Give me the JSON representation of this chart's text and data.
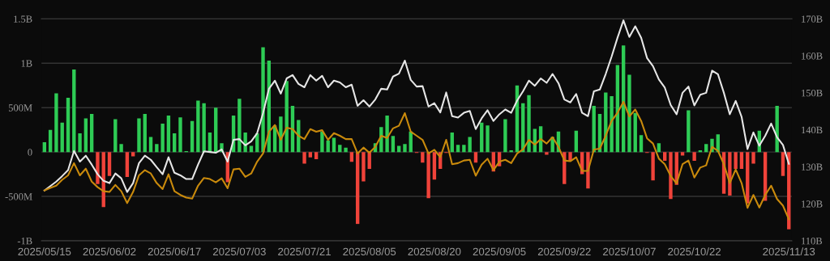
{
  "chart_data": {
    "type": "bar",
    "categories": [
      "2025/05/15",
      null,
      null,
      null,
      null,
      null,
      null,
      null,
      null,
      null,
      null,
      "2025/06/02",
      null,
      null,
      null,
      null,
      null,
      null,
      null,
      null,
      null,
      null,
      "2025/06/17",
      null,
      null,
      null,
      null,
      null,
      null,
      null,
      null,
      null,
      null,
      "2025/07/03",
      null,
      null,
      null,
      null,
      null,
      null,
      null,
      null,
      null,
      null,
      "2025/07/21",
      null,
      null,
      null,
      null,
      null,
      null,
      null,
      null,
      null,
      null,
      "2025/08/05",
      null,
      null,
      null,
      null,
      null,
      null,
      null,
      null,
      null,
      null,
      "2025/08/20",
      null,
      null,
      null,
      null,
      null,
      null,
      null,
      null,
      null,
      null,
      "2025/09/05",
      null,
      null,
      null,
      null,
      null,
      null,
      null,
      null,
      null,
      null,
      "2025/09/22",
      null,
      null,
      null,
      null,
      null,
      null,
      null,
      null,
      null,
      null,
      "2025/10/07",
      null,
      null,
      null,
      null,
      null,
      null,
      null,
      null,
      null,
      null,
      "2025/10/22",
      null,
      null,
      null,
      null,
      null,
      null,
      null,
      null,
      null,
      null,
      null,
      null,
      null,
      null,
      null,
      "2025/11/13"
    ],
    "series": [
      {
        "values": [
          110000000,
          250000000,
          660000000,
          330000000,
          610000000,
          930000000,
          210000000,
          380000000,
          430000000,
          -360000000,
          -620000000,
          -270000000,
          370000000,
          90000000,
          -280000000,
          -50000000,
          380000000,
          430000000,
          170000000,
          90000000,
          320000000,
          410000000,
          210000000,
          390000000,
          10000000,
          350000000,
          580000000,
          550000000,
          220000000,
          500000000,
          100000000,
          -340000000,
          410000000,
          600000000,
          220000000,
          70000000,
          210000000,
          1180000000,
          1030000000,
          300000000,
          400000000,
          800000000,
          520000000,
          360000000,
          -130000000,
          -60000000,
          -80000000,
          230000000,
          130000000,
          160000000,
          80000000,
          50000000,
          -110000000,
          -810000000,
          -330000000,
          -190000000,
          100000000,
          280000000,
          410000000,
          180000000,
          70000000,
          90000000,
          230000000,
          -10000000,
          -120000000,
          -520000000,
          -310000000,
          -190000000,
          -10000000,
          220000000,
          80000000,
          80000000,
          170000000,
          -120000000,
          330000000,
          300000000,
          -220000000,
          -160000000,
          370000000,
          20000000,
          750000000,
          550000000,
          640000000,
          260000000,
          290000000,
          -30000000,
          170000000,
          230000000,
          -360000000,
          -100000000,
          240000000,
          -250000000,
          -410000000,
          520000000,
          430000000,
          670000000,
          630000000,
          980000000,
          1200000000,
          870000000,
          440000000,
          190000000,
          -10000000,
          -320000000,
          100000000,
          -100000000,
          -530000000,
          -370000000,
          -40000000,
          470000000,
          -100000000,
          20000000,
          90000000,
          150000000,
          200000000,
          -470000000,
          -490000000,
          -190000000,
          -190000000,
          -580000000,
          -130000000,
          240000000,
          -550000000,
          0,
          520000000,
          -270000000,
          -870000000
        ],
        "colors": [
          "#2ecc55",
          "#2ecc55",
          "#2ecc55",
          "#2ecc55",
          "#2ecc55",
          "#2ecc55",
          "#2ecc55",
          "#2ecc55",
          "#2ecc55",
          "#f0433a",
          "#f0433a",
          "#f0433a",
          "#2ecc55",
          "#2ecc55",
          "#f0433a",
          "#f0433a",
          "#2ecc55",
          "#2ecc55",
          "#2ecc55",
          "#2ecc55",
          "#2ecc55",
          "#2ecc55",
          "#2ecc55",
          "#2ecc55",
          "#2ecc55",
          "#2ecc55",
          "#2ecc55",
          "#2ecc55",
          "#2ecc55",
          "#2ecc55",
          "#2ecc55",
          "#f0433a",
          "#2ecc55",
          "#2ecc55",
          "#2ecc55",
          "#2ecc55",
          "#2ecc55",
          "#2ecc55",
          "#2ecc55",
          "#2ecc55",
          "#2ecc55",
          "#2ecc55",
          "#2ecc55",
          "#2ecc55",
          "#f0433a",
          "#f0433a",
          "#f0433a",
          "#2ecc55",
          "#2ecc55",
          "#2ecc55",
          "#2ecc55",
          "#2ecc55",
          "#f0433a",
          "#f0433a",
          "#f0433a",
          "#f0433a",
          "#2ecc55",
          "#2ecc55",
          "#2ecc55",
          "#2ecc55",
          "#2ecc55",
          "#2ecc55",
          "#2ecc55",
          "#f0433a",
          "#f0433a",
          "#f0433a",
          "#f0433a",
          "#f0433a",
          "#f0433a",
          "#2ecc55",
          "#2ecc55",
          "#2ecc55",
          "#2ecc55",
          "#f0433a",
          "#2ecc55",
          "#2ecc55",
          "#f0433a",
          "#f0433a",
          "#2ecc55",
          "#2ecc55",
          "#2ecc55",
          "#2ecc55",
          "#2ecc55",
          "#2ecc55",
          "#2ecc55",
          "#f0433a",
          "#2ecc55",
          "#2ecc55",
          "#f0433a",
          "#f0433a",
          "#2ecc55",
          "#f0433a",
          "#f0433a",
          "#2ecc55",
          "#2ecc55",
          "#2ecc55",
          "#2ecc55",
          "#2ecc55",
          "#2ecc55",
          "#2ecc55",
          "#2ecc55",
          "#2ecc55",
          "#f0433a",
          "#f0433a",
          "#2ecc55",
          "#f0433a",
          "#f0433a",
          "#f0433a",
          "#f0433a",
          "#2ecc55",
          "#f0433a",
          "#2ecc55",
          "#2ecc55",
          "#2ecc55",
          "#2ecc55",
          "#f0433a",
          "#f0433a",
          "#f0433a",
          "#f0433a",
          "#f0433a",
          "#f0433a",
          "#2ecc55",
          "#f0433a",
          "#2ecc55",
          "#2ecc55",
          "#f0433a",
          "#f0433a"
        ]
      },
      {
        "type": "line",
        "axis": "y2",
        "color": "#e6e6e6",
        "values": [
          123.6,
          124.8,
          126.0,
          127.5,
          129.1,
          134.3,
          131.4,
          133.0,
          130.6,
          128.0,
          126.2,
          125.6,
          128.2,
          126.9,
          123.2,
          125.6,
          131.0,
          133.0,
          131.9,
          129.9,
          128.0,
          132.6,
          128.4,
          127.7,
          126.7,
          126.7,
          130.6,
          134.2,
          134.0,
          133.8,
          134.7,
          131.4,
          137.3,
          137.5,
          135.8,
          136.9,
          139.1,
          144.5,
          151.1,
          153.3,
          149.8,
          153.9,
          154.8,
          152.4,
          151.5,
          154.8,
          153.3,
          154.6,
          151.5,
          153.3,
          152.8,
          151.5,
          152.2,
          146.5,
          148.0,
          146.3,
          148.2,
          151.1,
          150.9,
          154.4,
          155.2,
          158.7,
          153.5,
          151.7,
          151.8,
          146.3,
          147.2,
          144.7,
          150.1,
          143.7,
          143.3,
          144.6,
          145.1,
          140.2,
          143.1,
          145.3,
          142.4,
          144.2,
          145.5,
          144.6,
          147.9,
          150.4,
          153.3,
          151.9,
          153.9,
          152.7,
          155.1,
          152.6,
          148.2,
          147.4,
          149.7,
          144.6,
          143.7,
          150.4,
          150.9,
          155.1,
          159.8,
          164.9,
          169.6,
          165.1,
          168.0,
          164.9,
          159.4,
          157.2,
          153.6,
          151.4,
          146.7,
          144.2,
          150.0,
          151.7,
          146.6,
          149.5,
          150.0,
          156.0,
          155.0,
          150.0,
          144.2,
          147.8,
          143.5,
          134.8,
          139.3,
          135.7,
          138.4,
          141.7,
          138.0,
          135.9,
          130.8
        ]
      },
      {
        "type": "line",
        "axis": "y2",
        "color": "#c98a0c",
        "values": [
          123.6,
          124.3,
          124.9,
          126.5,
          127.7,
          131.0,
          127.7,
          129.5,
          126.0,
          124.5,
          123.4,
          123.2,
          125.1,
          123.4,
          120.2,
          123.2,
          127.7,
          129.1,
          128.2,
          125.6,
          124.0,
          128.0,
          123.4,
          122.4,
          121.7,
          121.4,
          124.9,
          127.0,
          126.7,
          125.8,
          126.9,
          124.2,
          129.3,
          129.5,
          127.3,
          128.2,
          131.4,
          133.6,
          139.5,
          141.3,
          137.3,
          140.6,
          140.2,
          138.4,
          137.5,
          140.2,
          139.5,
          139.9,
          137.3,
          139.1,
          138.4,
          137.5,
          137.5,
          133.6,
          135.2,
          133.8,
          135.4,
          138.4,
          137.8,
          140.4,
          141.1,
          144.5,
          139.5,
          138.4,
          137.3,
          133.6,
          134.6,
          132.6,
          137.3,
          130.7,
          131.0,
          131.7,
          131.9,
          127.6,
          130.6,
          132.2,
          129.1,
          131.4,
          131.9,
          131.0,
          133.6,
          134.7,
          137.3,
          136.0,
          137.5,
          136.3,
          138.0,
          135.4,
          131.7,
          131.5,
          132.6,
          128.9,
          128.9,
          134.7,
          134.9,
          138.4,
          142.4,
          144.6,
          147.6,
          143.6,
          145.5,
          142.4,
          137.7,
          136.3,
          132.2,
          130.7,
          127.5,
          125.5,
          130.7,
          131.7,
          127.1,
          129.8,
          130.4,
          135.4,
          134.3,
          130.7,
          125.6,
          129.3,
          125.6,
          118.9,
          122.4,
          119.0,
          122.4,
          124.9,
          121.3,
          119.5,
          115.8
        ]
      }
    ],
    "ylim": [
      -1000000000,
      1500000000
    ],
    "yticks": [
      {
        "value": -1000000000,
        "label": "-1B"
      },
      {
        "value": -500000000,
        "label": "-500M"
      },
      0,
      {
        "value": 500000000,
        "label": "500M"
      },
      {
        "value": 1000000000,
        "label": "1B"
      },
      {
        "value": 1500000000,
        "label": "1.5B"
      }
    ],
    "y2lim": [
      110,
      170
    ],
    "y2ticks": [
      {
        "value": 110,
        "label": "110B"
      },
      {
        "value": 120,
        "label": "120B"
      },
      {
        "value": 130,
        "label": "130B"
      },
      {
        "value": 140,
        "label": "140B"
      },
      {
        "value": 150,
        "label": "150B"
      },
      {
        "value": 160,
        "label": "160B"
      },
      {
        "value": 170,
        "label": "170B"
      }
    ],
    "legend": false,
    "grid": "y",
    "marker": "none",
    "line_style": "solid"
  }
}
